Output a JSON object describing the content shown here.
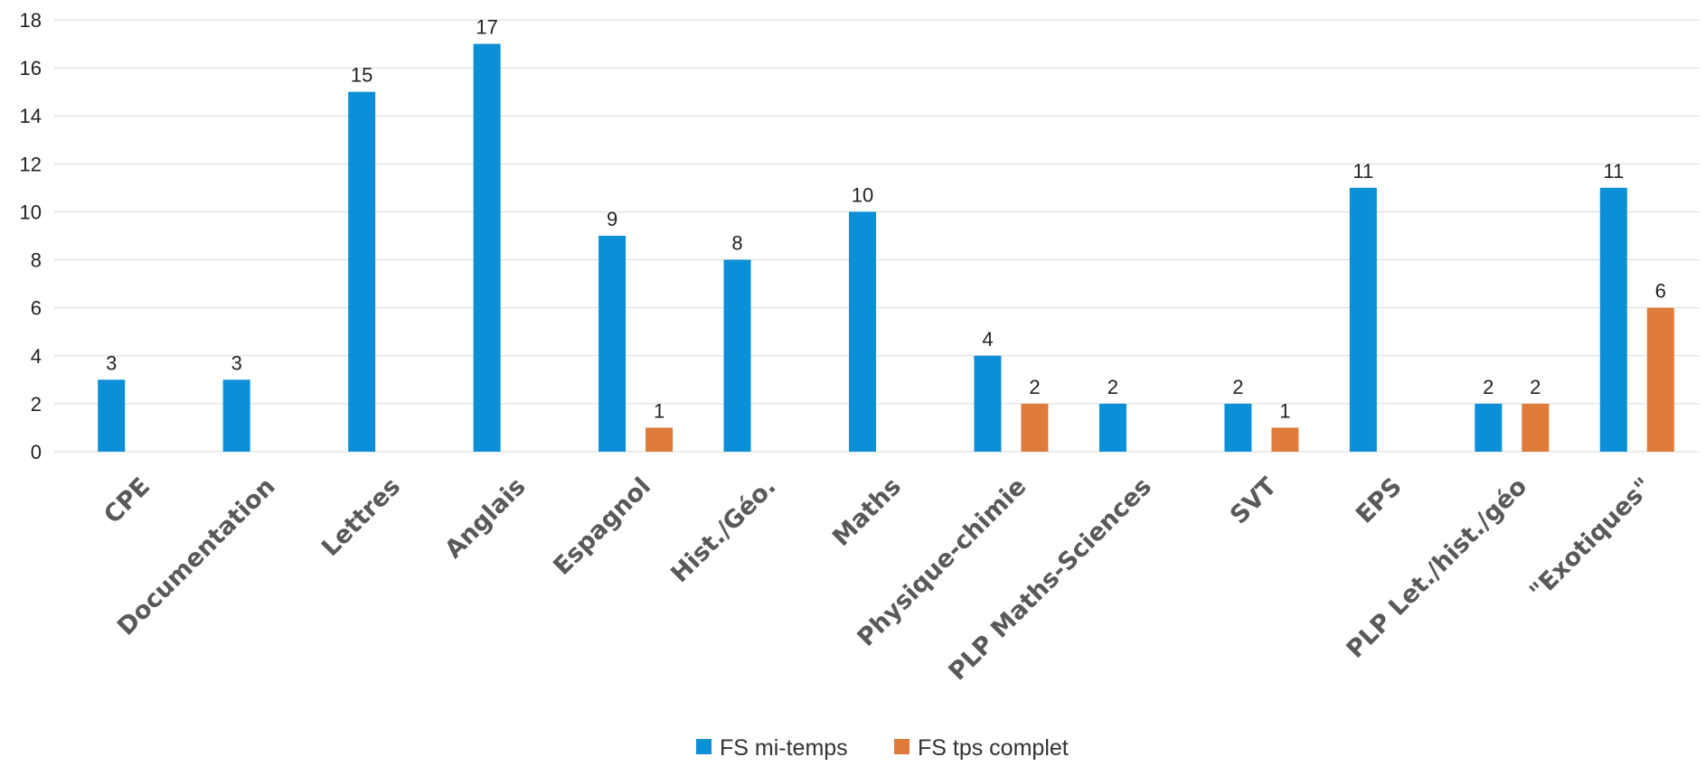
{
  "chart_data": {
    "type": "bar",
    "categories": [
      "CPE",
      "Documentation",
      "Lettres",
      "Anglais",
      "Espagnol",
      "Hist./Géo.",
      "Maths",
      "Physique-chimie",
      "PLP Maths-Sciences",
      "SVT",
      "EPS",
      "PLP Let./hist./géo",
      "\"Exotiques\""
    ],
    "series": [
      {
        "name": "FS mi-temps",
        "color": "#0b8fd6",
        "values": [
          3,
          3,
          15,
          17,
          9,
          8,
          10,
          4,
          2,
          2,
          11,
          2,
          11
        ]
      },
      {
        "name": "FS tps complet",
        "color": "#e07b39",
        "values": [
          null,
          null,
          null,
          null,
          1,
          null,
          null,
          2,
          null,
          1,
          null,
          2,
          6
        ]
      }
    ],
    "ylim": [
      0,
      18
    ],
    "yticks": [
      "0",
      "2",
      "4",
      "6",
      "8",
      "10",
      "12",
      "14",
      "16",
      "18"
    ],
    "grid": true,
    "legend": "bottom"
  }
}
